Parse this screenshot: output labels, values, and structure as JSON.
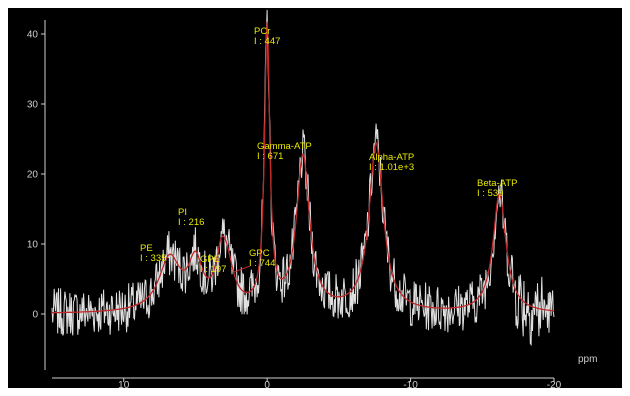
{
  "chart_data": {
    "type": "line",
    "title": "",
    "xlabel": "ppm",
    "ylabel": "",
    "x_reversed": true,
    "xlim": [
      15,
      -20
    ],
    "ylim": [
      -8,
      42
    ],
    "grid": false,
    "x_ticks": [
      10,
      0,
      -10,
      -20
    ],
    "x_tick_labels": [
      "10",
      "0",
      "-10",
      "-20"
    ],
    "y_ticks": [
      0,
      10,
      20,
      30,
      40
    ],
    "y_tick_labels": [
      "0",
      "10",
      "20",
      "30",
      "40"
    ],
    "colors": {
      "background": "#000000",
      "spectrum": "#e0e0e0",
      "fit": "#c0282a",
      "labels": "#e8e800",
      "axes": "#cfcfcf"
    },
    "peaks": [
      {
        "name": "PE",
        "integral": "I : 335",
        "ppm": 6.8,
        "height": 7.5
      },
      {
        "name": "PI",
        "integral": "I : 216",
        "ppm": 5.0,
        "height": 6.5
      },
      {
        "name": "GPE",
        "integral": "I : 197",
        "ppm": 3.2,
        "height": 5.5
      },
      {
        "name": "GPC",
        "integral": "I : 744",
        "ppm": 2.8,
        "height": 5.5
      },
      {
        "name": "PCr",
        "integral": "I : 447",
        "ppm": 0.0,
        "height": 40.0
      },
      {
        "name": "Gamma-ATP",
        "integral": "I : 671",
        "ppm": -2.5,
        "height": 22.0
      },
      {
        "name": "Alpha-ATP",
        "integral": "I : 1.01e+3",
        "ppm": -7.6,
        "height": 24.0
      },
      {
        "name": "Beta-ATP",
        "integral": "I : 539",
        "ppm": -16.2,
        "height": 17.0
      }
    ]
  }
}
